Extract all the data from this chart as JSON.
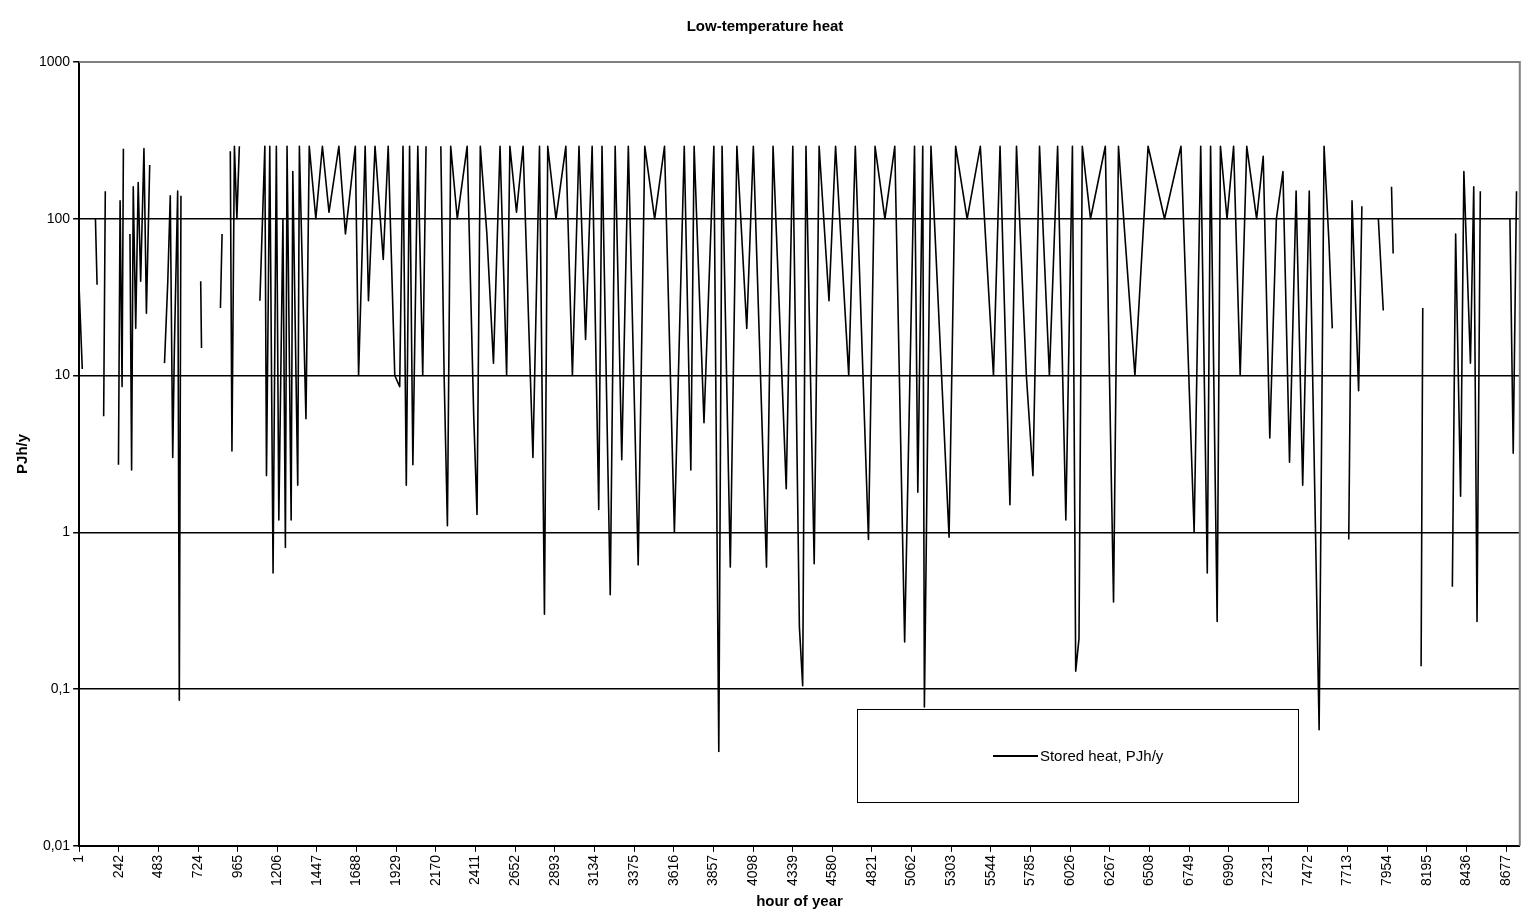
{
  "chart_data": {
    "type": "line",
    "title": "Low-temperature heat",
    "xlabel": "hour of year",
    "ylabel": "PJh/y",
    "log": "y",
    "grid": "y",
    "legend": "bottom",
    "marker": "none",
    "line_style": "solid",
    "xlim": [
      1,
      8760
    ],
    "xticks": [
      1,
      242,
      483,
      724,
      965,
      1206,
      1447,
      1688,
      1929,
      2170,
      2411,
      2652,
      2893,
      3134,
      3375,
      3616,
      3857,
      4098,
      4339,
      4580,
      4821,
      5062,
      5303,
      5544,
      5785,
      6026,
      6267,
      6508,
      6749,
      6990,
      7231,
      7472,
      7713,
      7954,
      8195,
      8436,
      8677
    ],
    "ylim": [
      0.01,
      1000
    ],
    "yticks": [
      {
        "value": 0.01,
        "label": "0,01"
      },
      {
        "value": 0.1,
        "label": "0,1"
      },
      1,
      10,
      100,
      1000
    ],
    "x": [
      1,
      20,
      60,
      100,
      110,
      130,
      150,
      160,
      200,
      240,
      250,
      262,
      270,
      290,
      310,
      320,
      330,
      345,
      360,
      375,
      395,
      410,
      430,
      475,
      520,
      540,
      555,
      570,
      580,
      600,
      610,
      620,
      680,
      740,
      745,
      800,
      860,
      870,
      895,
      920,
      930,
      945,
      960,
      975,
      1040,
      1100,
      1130,
      1140,
      1160,
      1180,
      1200,
      1215,
      1240,
      1255,
      1265,
      1290,
      1300,
      1330,
      1340,
      1380,
      1400,
      1440,
      1480,
      1520,
      1580,
      1620,
      1680,
      1700,
      1740,
      1760,
      1800,
      1850,
      1880,
      1920,
      1950,
      1970,
      1990,
      2010,
      2030,
      2060,
      2090,
      2110,
      2155,
      2200,
      2220,
      2240,
      2260,
      2300,
      2360,
      2400,
      2420,
      2440,
      2480,
      2520,
      2560,
      2600,
      2620,
      2660,
      2700,
      2760,
      2800,
      2830,
      2850,
      2900,
      2960,
      3000,
      3040,
      3080,
      3120,
      3160,
      3180,
      3230,
      3260,
      3300,
      3340,
      3400,
      3440,
      3500,
      3560,
      3620,
      3680,
      3720,
      3740,
      3800,
      3860,
      3890,
      3910,
      3960,
      4000,
      4060,
      4100,
      4180,
      4220,
      4300,
      4340,
      4380,
      4400,
      4420,
      4470,
      4500,
      4560,
      4600,
      4680,
      4720,
      4800,
      4840,
      4900,
      4960,
      5020,
      5080,
      5100,
      5130,
      5140,
      5180,
      5290,
      5330,
      5400,
      5480,
      5560,
      5600,
      5660,
      5700,
      5760,
      5800,
      5840,
      5900,
      5950,
      6000,
      6040,
      6060,
      6080,
      6100,
      6150,
      6240,
      6290,
      6320,
      6420,
      6500,
      6600,
      6700,
      6780,
      6820,
      6860,
      6880,
      6920,
      6940,
      6980,
      7020,
      7060,
      7100,
      7160,
      7200,
      7240,
      7280,
      7320,
      7360,
      7400,
      7440,
      7480,
      7540,
      7570,
      7600,
      7620,
      7670,
      7720,
      7740,
      7780,
      7800,
      7850,
      7900,
      7930,
      7955,
      7980,
      7990,
      8070,
      8160,
      8170,
      8260,
      8350,
      8370,
      8400,
      8420,
      8460,
      8480,
      8500,
      8520,
      8610,
      8700,
      8720,
      8740
    ],
    "series": [
      {
        "name": "Stored heat, PJh/y",
        "color": "#000000",
        "values": [
          36,
          11,
          null,
          100,
          38,
          null,
          5.5,
          150,
          null,
          2.7,
          130,
          8.5,
          280,
          null,
          80,
          2.5,
          160,
          20,
          170,
          40,
          280,
          25,
          220,
          null,
          12,
          40,
          140,
          3,
          15,
          150,
          0.085,
          140,
          null,
          40,
          15,
          null,
          27,
          80,
          null,
          270,
          3.3,
          290,
          100,
          290,
          null,
          30,
          290,
          2.3,
          290,
          0.55,
          290,
          1.2,
          100,
          0.8,
          290,
          1.2,
          200,
          2,
          290,
          5.3,
          290,
          100,
          290,
          110,
          290,
          80,
          290,
          10,
          290,
          30,
          290,
          55,
          290,
          10,
          8.5,
          290,
          2,
          290,
          2.7,
          290,
          10,
          290,
          null,
          290,
          10,
          1.1,
          290,
          100,
          290,
          5.5,
          1.3,
          290,
          80,
          12,
          290,
          10,
          290,
          110,
          290,
          3,
          290,
          0.3,
          290,
          100,
          290,
          10,
          290,
          17,
          290,
          1.4,
          290,
          0.4,
          290,
          2.9,
          290,
          0.62,
          290,
          100,
          290,
          1,
          290,
          2.5,
          290,
          5,
          290,
          0.04,
          290,
          0.6,
          290,
          20,
          290,
          0.6,
          290,
          1.9,
          290,
          0.25,
          0.105,
          290,
          0.63,
          290,
          30,
          290,
          10,
          290,
          0.9,
          290,
          100,
          290,
          0.2,
          290,
          1.8,
          290,
          0.077,
          290,
          0.93,
          290,
          100,
          290,
          10,
          290,
          1.5,
          290,
          10,
          2.3,
          290,
          10,
          290,
          1.2,
          290,
          0.13,
          0.21,
          290,
          100,
          290,
          0.36,
          290,
          10,
          290,
          100,
          290,
          1,
          290,
          0.55,
          290,
          0.27,
          290,
          100,
          290,
          10,
          290,
          100,
          250,
          4,
          100,
          200,
          2.8,
          150,
          2,
          150,
          0.055,
          290,
          70,
          20,
          null,
          0.9,
          130,
          8,
          120,
          null,
          100,
          26,
          null,
          160,
          60,
          null,
          0.14,
          27,
          null,
          0.45,
          80,
          1.7,
          200,
          12,
          160,
          0.27,
          150,
          null,
          100,
          3.2,
          150
        ]
      }
    ]
  }
}
